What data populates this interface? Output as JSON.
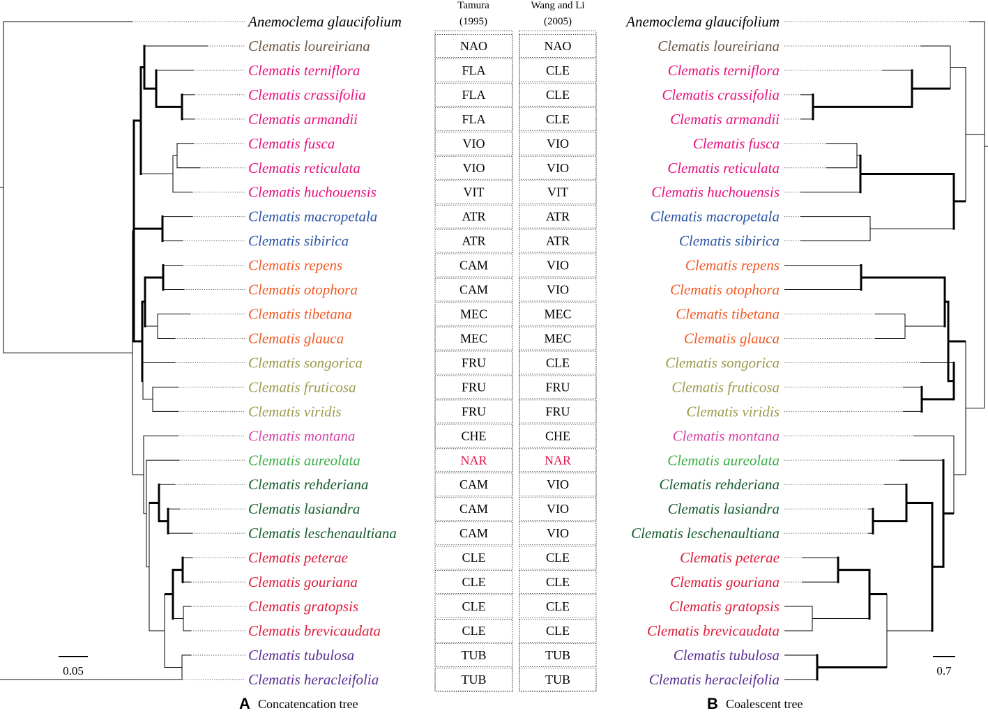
{
  "colors": {
    "outgroup": "#000000",
    "loureiriana": "#6B5744",
    "pink": "#E8117F",
    "blue": "#2B55A4",
    "orange": "#F15A24",
    "olive": "#9C9A4D",
    "magenta": "#D447A6",
    "lightgreen": "#3DAE49",
    "darkgreen": "#155B2C",
    "red": "#DC1C3A",
    "purple": "#5B2F92",
    "nar": "#E5174A"
  },
  "headers": {
    "tamura": [
      "Tamura",
      "(1995)"
    ],
    "wang": [
      "Wang and Li",
      "(2005)"
    ]
  },
  "species": [
    {
      "name": "Anemoclema glaucifolium",
      "color": "outgroup",
      "tamura": "",
      "wang": ""
    },
    {
      "name": "Clematis loureiriana",
      "color": "loureiriana",
      "tamura": "NAO",
      "wang": "NAO"
    },
    {
      "name": "Clematis terniflora",
      "color": "pink",
      "tamura": "FLA",
      "wang": "CLE"
    },
    {
      "name": "Clematis crassifolia",
      "color": "pink",
      "tamura": "FLA",
      "wang": "CLE"
    },
    {
      "name": "Clematis armandii",
      "color": "pink",
      "tamura": "FLA",
      "wang": "CLE"
    },
    {
      "name": "Clematis fusca",
      "color": "pink",
      "tamura": "VIO",
      "wang": "VIO"
    },
    {
      "name": "Clematis reticulata",
      "color": "pink",
      "tamura": "VIO",
      "wang": "VIO"
    },
    {
      "name": "Clematis huchouensis",
      "color": "pink",
      "tamura": "VIT",
      "wang": "VIT"
    },
    {
      "name": "Clematis macropetala",
      "color": "blue",
      "tamura": "ATR",
      "wang": "ATR"
    },
    {
      "name": "Clematis sibirica",
      "color": "blue",
      "tamura": "ATR",
      "wang": "ATR"
    },
    {
      "name": "Clematis repens",
      "color": "orange",
      "tamura": "CAM",
      "wang": "VIO"
    },
    {
      "name": "Clematis otophora",
      "color": "orange",
      "tamura": "CAM",
      "wang": "VIO"
    },
    {
      "name": "Clematis tibetana",
      "color": "orange",
      "tamura": "MEC",
      "wang": "MEC"
    },
    {
      "name": "Clematis glauca",
      "color": "orange",
      "tamura": "MEC",
      "wang": "MEC"
    },
    {
      "name": "Clematis songorica",
      "color": "olive",
      "tamura": "FRU",
      "wang": "CLE"
    },
    {
      "name": "Clematis fruticosa",
      "color": "olive",
      "tamura": "FRU",
      "wang": "FRU"
    },
    {
      "name": "Clematis viridis",
      "color": "olive",
      "tamura": "FRU",
      "wang": "FRU"
    },
    {
      "name": "Clematis montana",
      "color": "magenta",
      "tamura": "CHE",
      "wang": "CHE"
    },
    {
      "name": "Clematis aureolata",
      "color": "lightgreen",
      "tamura": "NAR",
      "wang": "NAR",
      "code_color": "nar"
    },
    {
      "name": "Clematis rehderiana",
      "color": "darkgreen",
      "tamura": "CAM",
      "wang": "VIO"
    },
    {
      "name": "Clematis lasiandra",
      "color": "darkgreen",
      "tamura": "CAM",
      "wang": "VIO"
    },
    {
      "name": "Clematis leschenaultiana",
      "color": "darkgreen",
      "tamura": "CAM",
      "wang": "VIO"
    },
    {
      "name": "Clematis peterae",
      "color": "red",
      "tamura": "CLE",
      "wang": "CLE"
    },
    {
      "name": "Clematis gouriana",
      "color": "red",
      "tamura": "CLE",
      "wang": "CLE"
    },
    {
      "name": "Clematis gratopsis",
      "color": "red",
      "tamura": "CLE",
      "wang": "CLE"
    },
    {
      "name": "Clematis brevicaudata",
      "color": "red",
      "tamura": "CLE",
      "wang": "CLE"
    },
    {
      "name": "Clematis tubulosa",
      "color": "purple",
      "tamura": "TUB",
      "wang": "TUB"
    },
    {
      "name": "Clematis heracleifolia",
      "color": "purple",
      "tamura": "TUB",
      "wang": "TUB"
    }
  ],
  "scale_left": "0.05",
  "scale_right": "0.7",
  "caption_left": {
    "letter": "A",
    "text": "Concatencation tree"
  },
  "caption_right": {
    "letter": "B",
    "text": "Coalescent tree"
  }
}
